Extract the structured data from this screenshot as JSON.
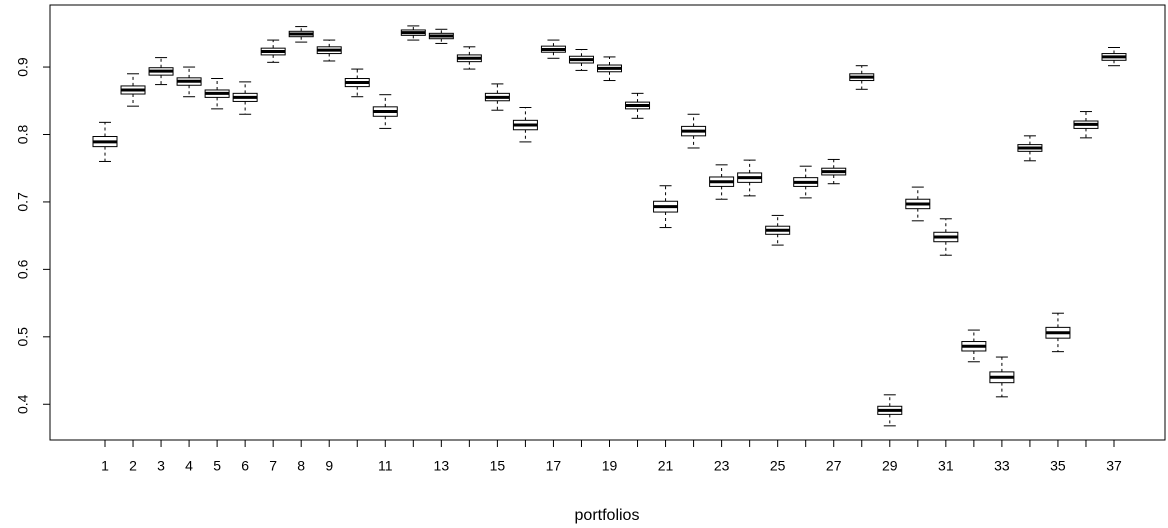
{
  "chart_data": {
    "type": "box",
    "x_label": "portfolios",
    "categories": [
      "1",
      "2",
      "3",
      "4",
      "5",
      "6",
      "7",
      "8",
      "9",
      null,
      "11",
      null,
      "13",
      null,
      "15",
      null,
      "17",
      null,
      "19",
      null,
      "21",
      null,
      "23",
      null,
      "25",
      null,
      "27",
      null,
      "29",
      null,
      "31",
      null,
      "33",
      null,
      "35",
      null,
      "37"
    ],
    "min": [
      0.76,
      0.842,
      0.874,
      0.856,
      0.838,
      0.83,
      0.907,
      0.937,
      0.909,
      0.856,
      0.809,
      0.94,
      0.935,
      0.897,
      0.836,
      0.789,
      0.913,
      0.895,
      0.88,
      0.824,
      0.662,
      0.78,
      0.704,
      0.709,
      0.636,
      0.706,
      0.727,
      0.867,
      0.368,
      0.672,
      0.621,
      0.463,
      0.411,
      0.761,
      0.478,
      0.795,
      0.902
    ],
    "q1": [
      0.782,
      0.86,
      0.888,
      0.873,
      0.855,
      0.849,
      0.918,
      0.945,
      0.92,
      0.871,
      0.827,
      0.947,
      0.942,
      0.908,
      0.85,
      0.807,
      0.922,
      0.906,
      0.893,
      0.838,
      0.685,
      0.798,
      0.723,
      0.729,
      0.652,
      0.723,
      0.74,
      0.88,
      0.385,
      0.69,
      0.641,
      0.479,
      0.432,
      0.775,
      0.498,
      0.809,
      0.91
    ],
    "median": [
      0.789,
      0.866,
      0.894,
      0.879,
      0.861,
      0.855,
      0.923,
      0.949,
      0.925,
      0.877,
      0.834,
      0.951,
      0.946,
      0.913,
      0.855,
      0.814,
      0.926,
      0.911,
      0.898,
      0.843,
      0.693,
      0.805,
      0.73,
      0.736,
      0.658,
      0.729,
      0.745,
      0.885,
      0.391,
      0.697,
      0.648,
      0.486,
      0.44,
      0.78,
      0.506,
      0.815,
      0.915
    ],
    "q3": [
      0.797,
      0.872,
      0.899,
      0.884,
      0.866,
      0.861,
      0.928,
      0.953,
      0.93,
      0.883,
      0.841,
      0.955,
      0.95,
      0.918,
      0.861,
      0.821,
      0.931,
      0.916,
      0.903,
      0.848,
      0.701,
      0.812,
      0.737,
      0.743,
      0.664,
      0.736,
      0.75,
      0.89,
      0.397,
      0.704,
      0.655,
      0.493,
      0.448,
      0.785,
      0.514,
      0.82,
      0.92
    ],
    "max": [
      0.818,
      0.89,
      0.914,
      0.9,
      0.883,
      0.878,
      0.94,
      0.96,
      0.94,
      0.897,
      0.859,
      0.961,
      0.956,
      0.93,
      0.875,
      0.84,
      0.94,
      0.926,
      0.915,
      0.861,
      0.724,
      0.83,
      0.755,
      0.762,
      0.68,
      0.753,
      0.763,
      0.902,
      0.414,
      0.722,
      0.675,
      0.51,
      0.47,
      0.798,
      0.535,
      0.834,
      0.929
    ],
    "color": "#000000",
    "ylim": [
      0.347,
      0.992
    ],
    "yticks": [
      0.4,
      0.5,
      0.6,
      0.7,
      0.8,
      0.9
    ]
  }
}
